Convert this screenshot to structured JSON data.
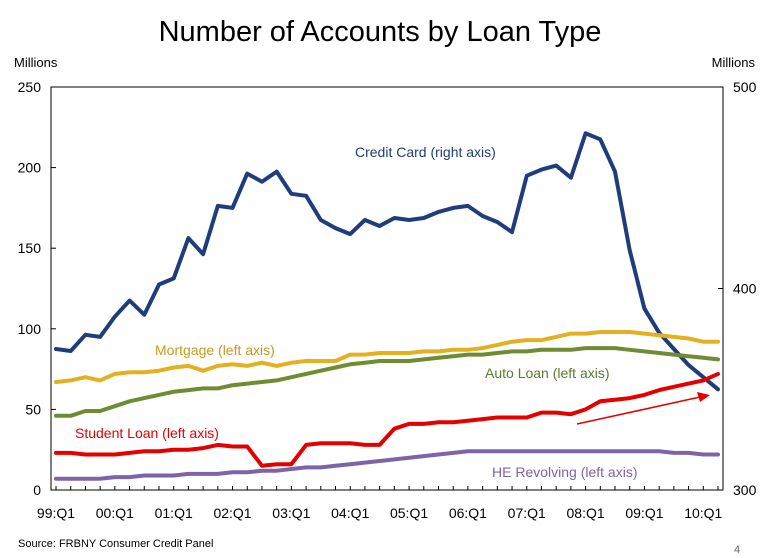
{
  "chart_data": {
    "type": "line",
    "title": "Number of Accounts by Loan Type",
    "left_axis_unit": "Millions",
    "right_axis_unit": "Millions",
    "left_ylim": [
      0,
      250
    ],
    "left_yticks": [
      0,
      50,
      100,
      150,
      200,
      250
    ],
    "right_ylim": [
      300,
      500
    ],
    "right_yticks": [
      300,
      400,
      500
    ],
    "x_tick_labels": [
      "99:Q1",
      "00:Q1",
      "01:Q1",
      "02:Q1",
      "03:Q1",
      "04:Q1",
      "05:Q1",
      "06:Q1",
      "07:Q1",
      "08:Q1",
      "09:Q1",
      "10:Q1"
    ],
    "x": [
      "99:Q1",
      "99:Q2",
      "99:Q3",
      "99:Q4",
      "00:Q1",
      "00:Q2",
      "00:Q3",
      "00:Q4",
      "01:Q1",
      "01:Q2",
      "01:Q3",
      "01:Q4",
      "02:Q1",
      "02:Q2",
      "02:Q3",
      "02:Q4",
      "03:Q1",
      "03:Q2",
      "03:Q3",
      "03:Q4",
      "04:Q1",
      "04:Q2",
      "04:Q3",
      "04:Q4",
      "05:Q1",
      "05:Q2",
      "05:Q3",
      "05:Q4",
      "06:Q1",
      "06:Q2",
      "06:Q3",
      "06:Q4",
      "07:Q1",
      "07:Q2",
      "07:Q3",
      "07:Q4",
      "08:Q1",
      "08:Q2",
      "08:Q3",
      "08:Q4",
      "09:Q1",
      "09:Q2",
      "09:Q3",
      "09:Q4",
      "10:Q1",
      "10:Q2"
    ],
    "series": [
      {
        "name": "Credit Card (right axis)",
        "axis": "right",
        "color": "#1f3d7a",
        "values": [
          370,
          369,
          377,
          376,
          386,
          394,
          387,
          402,
          405,
          425,
          417,
          441,
          440,
          457,
          453,
          458,
          447,
          446,
          434,
          430,
          427,
          434,
          431,
          435,
          434,
          435,
          438,
          440,
          441,
          436,
          433,
          428,
          456,
          459,
          461,
          455,
          477,
          474,
          458,
          419,
          390,
          378,
          370,
          362,
          356,
          350
        ]
      },
      {
        "name": "Mortgage (left axis)",
        "axis": "left",
        "color": "#e3b020",
        "values": [
          67,
          68,
          70,
          68,
          72,
          73,
          73,
          74,
          76,
          77,
          74,
          77,
          78,
          77,
          79,
          77,
          79,
          80,
          80,
          80,
          84,
          84,
          85,
          85,
          85,
          86,
          86,
          87,
          87,
          88,
          90,
          92,
          93,
          93,
          95,
          97,
          97,
          98,
          98,
          98,
          97,
          96,
          95,
          94,
          92,
          92
        ]
      },
      {
        "name": "Auto Loan (left axis)",
        "axis": "left",
        "color": "#6e8c32",
        "values": [
          46,
          46,
          49,
          49,
          52,
          55,
          57,
          59,
          61,
          62,
          63,
          63,
          65,
          66,
          67,
          68,
          70,
          72,
          74,
          76,
          78,
          79,
          80,
          80,
          80,
          81,
          82,
          83,
          84,
          84,
          85,
          86,
          86,
          87,
          87,
          87,
          88,
          88,
          88,
          87,
          86,
          85,
          84,
          83,
          82,
          81
        ]
      },
      {
        "name": "Student Loan (left axis)",
        "axis": "left",
        "color": "#e50000",
        "values": [
          23,
          23,
          22,
          22,
          22,
          23,
          24,
          24,
          25,
          25,
          26,
          28,
          27,
          27,
          15,
          16,
          16,
          28,
          29,
          29,
          29,
          28,
          28,
          38,
          41,
          41,
          42,
          42,
          43,
          44,
          45,
          45,
          45,
          48,
          48,
          47,
          50,
          55,
          56,
          57,
          59,
          62,
          64,
          66,
          68,
          72
        ]
      },
      {
        "name": "HE Revolving (left axis)",
        "axis": "left",
        "color": "#7f63a8",
        "values": [
          7,
          7,
          7,
          7,
          8,
          8,
          9,
          9,
          9,
          10,
          10,
          10,
          11,
          11,
          12,
          12,
          13,
          14,
          14,
          15,
          16,
          17,
          18,
          19,
          20,
          21,
          22,
          23,
          24,
          24,
          24,
          24,
          24,
          24,
          24,
          24,
          24,
          24,
          24,
          24,
          24,
          24,
          23,
          23,
          22,
          22
        ]
      }
    ],
    "annotations": [
      {
        "text": "Credit Card (right axis)",
        "color": "#1f3d7a"
      },
      {
        "text": "Mortgage (left axis)",
        "color": "#c79a1b"
      },
      {
        "text": "Auto Loan (left axis)",
        "color": "#5c7a2a"
      },
      {
        "text": "Student Loan (left axis)",
        "color": "#e50000"
      },
      {
        "text": "HE Revolving (left axis)",
        "color": "#7f63a8"
      }
    ],
    "arrow_color": "#e50000",
    "grid": false,
    "source": "Source: FRBNY Consumer Credit Panel",
    "page_number": "4"
  }
}
